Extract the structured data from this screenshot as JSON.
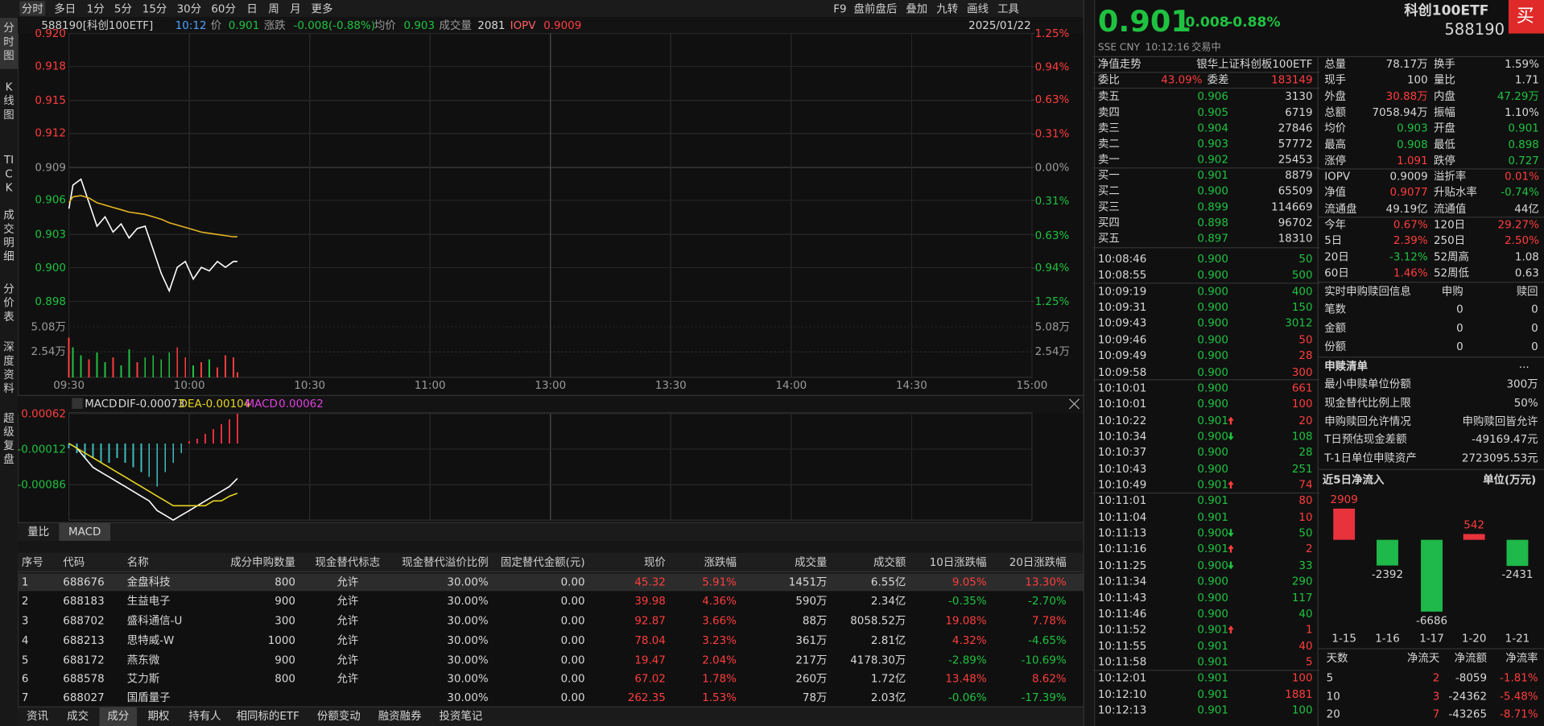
{
  "toolbar": {
    "left": [
      "分时",
      "多日",
      "1分",
      "5分",
      "15分",
      "30分",
      "60分",
      "日",
      "周",
      "月",
      "更多"
    ],
    "right": [
      "F9",
      "盘前盘后",
      "叠加",
      "九转",
      "画线",
      "工具"
    ]
  },
  "sidebar": [
    "分时图",
    "K线图",
    "TICK",
    "成交明细",
    "分价表",
    "深度资料",
    "超级复盘"
  ],
  "quote_bar": {
    "symbol": "588190[科创100ETF]",
    "time": "10:12",
    "price_label": "价",
    "price": "0.901",
    "change_label": "涨跌",
    "change": "-0.008(-0.88%)",
    "avg_label": "均价",
    "avg": "0.903",
    "vol_label": "成交量",
    "vol": "2081",
    "iopv_label": "IOPV",
    "iopv": "0.9009",
    "date": "2025/01/22"
  },
  "chart_data": [
    {
      "type": "line",
      "x": [
        0,
        1,
        3,
        5,
        7,
        9,
        11,
        13,
        15,
        17,
        19,
        21,
        23,
        25,
        27,
        29,
        31,
        33,
        35,
        37,
        39,
        41,
        42
      ],
      "xlim": [
        0,
        240
      ],
      "xticks": [
        {
          "value": 0,
          "label": "09:30"
        },
        {
          "value": 30,
          "label": "10:00"
        },
        {
          "value": 60,
          "label": "10:30"
        },
        {
          "value": 90,
          "label": "11:00"
        },
        {
          "value": 120,
          "label": "13:00"
        },
        {
          "value": 150,
          "label": "13:30"
        },
        {
          "value": 180,
          "label": "14:00"
        },
        {
          "value": 210,
          "label": "14:30"
        },
        {
          "value": 240,
          "label": "15:00"
        }
      ],
      "series": [
        {
          "color": "#ffffff",
          "values": [
            0.9055,
            0.9075,
            0.908,
            0.906,
            0.904,
            0.9048,
            0.9035,
            0.9042,
            0.903,
            0.9038,
            0.904,
            0.902,
            0.9,
            0.8985,
            0.9005,
            0.901,
            0.8995,
            0.9005,
            0.9002,
            0.901,
            0.9005,
            0.901,
            0.901
          ]
        },
        {
          "color": "#e6b422",
          "values": [
            0.906,
            0.9065,
            0.9066,
            0.9064,
            0.906,
            0.9058,
            0.9056,
            0.9054,
            0.9052,
            0.9051,
            0.905,
            0.9048,
            0.9046,
            0.9043,
            0.9041,
            0.9039,
            0.9037,
            0.9035,
            0.9034,
            0.9033,
            0.9032,
            0.9031,
            0.9031
          ]
        }
      ],
      "ylim": [
        0.8976,
        0.9204
      ],
      "yticks": [
        {
          "value": 0.9204,
          "label": "0.920"
        },
        {
          "value": 0.9176,
          "label": "0.918"
        },
        {
          "value": 0.9147,
          "label": "0.915"
        },
        {
          "value": 0.9119,
          "label": "0.912"
        },
        {
          "value": 0.909,
          "label": "0.909"
        },
        {
          "value": 0.9062,
          "label": "0.906"
        },
        {
          "value": 0.9033,
          "label": "0.903"
        },
        {
          "value": 0.90048,
          "label": "0.900"
        },
        {
          "value": 0.8976,
          "label": "0.898"
        }
      ],
      "y2lim": [
        -1.25,
        1.25
      ],
      "y2ticks": [
        {
          "value": 1.25,
          "label": "1.25%"
        },
        {
          "value": 0.94,
          "label": "0.94%"
        },
        {
          "value": 0.63,
          "label": "0.63%"
        },
        {
          "value": 0.31,
          "label": "0.31%"
        },
        {
          "value": 0,
          "label": "0.00%"
        },
        {
          "value": -0.31,
          "label": "0.31%"
        },
        {
          "value": -0.63,
          "label": "0.63%"
        },
        {
          "value": -0.94,
          "label": "0.94%"
        },
        {
          "value": -1.25,
          "label": "1.25%"
        }
      ],
      "grid": true,
      "volume": {
        "values": [
          40000,
          30000,
          22000,
          18000,
          25000,
          15000,
          20000,
          12000,
          28000,
          15000,
          20000,
          22000,
          18000,
          25000,
          30000,
          20000,
          12000,
          15000,
          18000,
          10000,
          22000,
          20000,
          5000
        ],
        "colors": [
          "#ff3d3d",
          "#1fc240",
          "#1fc240",
          "#ff3d3d",
          "#1fc240",
          "#1fc240",
          "#ff3d3d",
          "#1fc240",
          "#1fc240",
          "#ff3d3d",
          "#1fc240",
          "#1fc240",
          "#1fc240",
          "#1fc240",
          "#ff3d3d",
          "#ff3d3d",
          "#1fc240",
          "#ff3d3d",
          "#1fc240",
          "#ff3d3d",
          "#ff3d3d",
          "#ff3d3d",
          "#ff3d3d"
        ],
        "ylim": [
          0,
          76200
        ],
        "yticks": [
          {
            "value": 50800,
            "label": "5.08万"
          },
          {
            "value": 25400,
            "label": "2.54万"
          }
        ]
      }
    },
    {
      "type": "macd",
      "title": "MACD",
      "dif_label": "DIF",
      "dif": "-0.00073",
      "dea_label": "DEA",
      "dea": "-0.00104",
      "macd_label": "MACD",
      "macd": "0.00062",
      "x": [
        0,
        2,
        4,
        6,
        8,
        10,
        12,
        14,
        16,
        18,
        20,
        22,
        24,
        26,
        28,
        30,
        32,
        34,
        36,
        38,
        40,
        42
      ],
      "hist": [
        -0.0001,
        -0.0002,
        -0.0003,
        -0.0003,
        -0.0004,
        -0.0004,
        -0.0003,
        -0.0004,
        -0.0005,
        -0.0006,
        -0.0007,
        -0.0009,
        -0.0006,
        -0.0004,
        -0.0002,
        5e-05,
        0.0001,
        0.0002,
        0.0003,
        0.0004,
        0.0005,
        0.00062
      ],
      "up_color": "#e0303a",
      "down_color": "#3fbcc0",
      "series": [
        {
          "color": "#ffffff",
          "values": [
            0,
            -0.0001,
            -0.0003,
            -0.0005,
            -0.0006,
            -0.0007,
            -0.0008,
            -0.0009,
            -0.001,
            -0.0011,
            -0.0012,
            -0.0014,
            -0.0015,
            -0.0016,
            -0.0015,
            -0.0014,
            -0.0013,
            -0.0012,
            -0.0011,
            -0.001,
            -0.0009,
            -0.00073
          ]
        },
        {
          "color": "#e6d422",
          "values": [
            0,
            -0.0001,
            -0.0002,
            -0.0003,
            -0.0004,
            -0.0005,
            -0.0006,
            -0.0007,
            -0.0008,
            -0.0009,
            -0.001,
            -0.0011,
            -0.0012,
            -0.0013,
            -0.0013,
            -0.0013,
            -0.0013,
            -0.0013,
            -0.0012,
            -0.0012,
            -0.0011,
            -0.00104
          ]
        }
      ],
      "ylim": [
        -0.0016,
        0.00062
      ],
      "yticks": [
        0.00062,
        -0.00012,
        -0.00086
      ]
    },
    {
      "type": "bar",
      "title": "近5日净流入",
      "unit": "单位(万元)",
      "categories": [
        "1-15",
        "1-16",
        "1-17",
        "1-20",
        "1-21"
      ],
      "values": [
        2909,
        -2392,
        -6686,
        542,
        -2431
      ],
      "ylim": [
        -7060,
        3950
      ],
      "pos_color": "#e8323c",
      "neg_color": "#1fb84a"
    }
  ],
  "chart_tabs": [
    "量比",
    "MACD"
  ],
  "table": {
    "header": [
      "序号",
      "代码",
      "名称",
      "成分申购数量",
      "现金替代标志",
      "现金替代溢价比例",
      "固定替代金额(元)",
      "现价",
      "涨跌幅",
      "成交量",
      "成交额",
      "10日涨跌幅",
      "20日涨跌幅"
    ],
    "rows": [
      [
        "1",
        "688676",
        "金盘科技",
        "800",
        "允许",
        "30.00%",
        "0.00",
        "45.32",
        "5.91%",
        "1451万",
        "6.55亿",
        "9.05%",
        "13.30%"
      ],
      [
        "2",
        "688183",
        "生益电子",
        "900",
        "允许",
        "30.00%",
        "0.00",
        "39.98",
        "4.36%",
        "590万",
        "2.34亿",
        "-0.35%",
        "-2.70%"
      ],
      [
        "3",
        "688702",
        "盛科通信-U",
        "300",
        "允许",
        "30.00%",
        "0.00",
        "92.87",
        "3.66%",
        "88万",
        "8058.52万",
        "19.08%",
        "7.78%"
      ],
      [
        "4",
        "688213",
        "思特威-W",
        "1000",
        "允许",
        "30.00%",
        "0.00",
        "78.04",
        "3.23%",
        "361万",
        "2.81亿",
        "4.32%",
        "-4.65%"
      ],
      [
        "5",
        "688172",
        "燕东微",
        "900",
        "允许",
        "30.00%",
        "0.00",
        "19.47",
        "2.04%",
        "217万",
        "4178.30万",
        "-2.89%",
        "-10.69%"
      ],
      [
        "6",
        "688578",
        "艾力斯",
        "800",
        "允许",
        "30.00%",
        "0.00",
        "67.02",
        "1.78%",
        "260万",
        "1.72亿",
        "13.48%",
        "8.62%"
      ],
      [
        "7",
        "688027",
        "国盾量子",
        null,
        null,
        "30.00%",
        "0.00",
        "262.35",
        "1.53%",
        "78万",
        "2.03亿",
        "-0.06%",
        "-17.39%"
      ]
    ]
  },
  "bottom_tabs": [
    "资讯",
    "成交",
    "成分",
    "期权",
    "持有人",
    "相同标的ETF",
    "份额变动",
    "融资融券",
    "投资笔记"
  ],
  "header": {
    "price": "0.901",
    "change": "-0.008",
    "pct": "-0.88%",
    "name": "科创100ETF",
    "code": "588190",
    "buy": "买",
    "exchange": "SSE",
    "currency": "CNY",
    "time": "10:12:16",
    "status": "交易中"
  },
  "order_book": {
    "tabs": [
      "净值走势",
      "银华上证科创板100ETF"
    ],
    "ratio": [
      "委比",
      "43.09%",
      "委差",
      "183149"
    ],
    "asks": [
      [
        "卖五",
        "0.906",
        "3130"
      ],
      [
        "卖四",
        "0.905",
        "6719"
      ],
      [
        "卖三",
        "0.904",
        "27846"
      ],
      [
        "卖二",
        "0.903",
        "57772"
      ],
      [
        "卖一",
        "0.902",
        "25453"
      ]
    ],
    "bids": [
      [
        "买一",
        "0.901",
        "8879"
      ],
      [
        "买二",
        "0.900",
        "65509"
      ],
      [
        "买三",
        "0.899",
        "114669"
      ],
      [
        "买四",
        "0.898",
        "96702"
      ],
      [
        "买五",
        "0.897",
        "18310"
      ]
    ]
  },
  "trades": [
    [
      "10:08:46",
      "0.900",
      "50",
      "g",
      null
    ],
    [
      "10:08:55",
      "0.900",
      "500",
      "g",
      null
    ],
    [
      "10:09:19",
      "0.900",
      "400",
      "g",
      null
    ],
    [
      "10:09:31",
      "0.900",
      "150",
      "g",
      null
    ],
    [
      "10:09:43",
      "0.900",
      "3012",
      "g",
      null
    ],
    [
      "10:09:46",
      "0.900",
      "50",
      "r",
      null
    ],
    [
      "10:09:49",
      "0.900",
      "28",
      "r",
      null
    ],
    [
      "10:09:58",
      "0.900",
      "300",
      "r",
      null
    ],
    [
      "10:10:01",
      "0.900",
      "661",
      "r",
      null
    ],
    [
      "10:10:01",
      "0.900",
      "100",
      "r",
      null
    ],
    [
      "10:10:22",
      "0.901",
      "20",
      "r",
      "up"
    ],
    [
      "10:10:34",
      "0.900",
      "108",
      "g",
      "down"
    ],
    [
      "10:10:37",
      "0.900",
      "28",
      "g",
      null
    ],
    [
      "10:10:43",
      "0.900",
      "251",
      "g",
      null
    ],
    [
      "10:10:49",
      "0.901",
      "74",
      "r",
      "up"
    ],
    [
      "10:11:01",
      "0.901",
      "80",
      "r",
      null
    ],
    [
      "10:11:04",
      "0.901",
      "10",
      "r",
      null
    ],
    [
      "10:11:13",
      "0.900",
      "50",
      "g",
      "down"
    ],
    [
      "10:11:16",
      "0.901",
      "2",
      "r",
      "up"
    ],
    [
      "10:11:25",
      "0.900",
      "33",
      "g",
      "down"
    ],
    [
      "10:11:34",
      "0.900",
      "290",
      "g",
      null
    ],
    [
      "10:11:43",
      "0.900",
      "117",
      "g",
      null
    ],
    [
      "10:11:46",
      "0.900",
      "40",
      "g",
      null
    ],
    [
      "10:11:52",
      "0.901",
      "1",
      "r",
      "up"
    ],
    [
      "10:11:55",
      "0.901",
      "40",
      "r",
      null
    ],
    [
      "10:11:58",
      "0.901",
      "5",
      "r",
      null
    ],
    [
      "10:12:01",
      "0.901",
      "100",
      "r",
      null
    ],
    [
      "10:12:10",
      "0.901",
      "1881",
      "r",
      null
    ],
    [
      "10:12:13",
      "0.901",
      "100",
      "g",
      null
    ]
  ],
  "stats": [
    [
      "总量",
      "78.17万",
      "w",
      "换手",
      "1.59%",
      "w"
    ],
    [
      "现手",
      "100",
      "w",
      "量比",
      "1.71",
      "w"
    ],
    [
      "外盘",
      "30.88万",
      "r",
      "内盘",
      "47.29万",
      "g"
    ],
    [
      "总额",
      "7058.94万",
      "w",
      "振幅",
      "1.10%",
      "w"
    ],
    [
      "均价",
      "0.903",
      "g",
      "开盘",
      "0.901",
      "g"
    ],
    [
      "最高",
      "0.908",
      "g",
      "最低",
      "0.898",
      "g"
    ],
    [
      "涨停",
      "1.091",
      "r",
      "跌停",
      "0.727",
      "g"
    ],
    [
      "IOPV",
      "0.9009",
      "w",
      "溢折率",
      "0.01%",
      "r"
    ],
    [
      "净值",
      "0.9077",
      "r",
      "升贴水率",
      "-0.74%",
      "g"
    ],
    [
      "流通盘",
      "49.19亿",
      "w",
      "流通值",
      "44亿",
      "w"
    ],
    [
      "今年",
      "0.67%",
      "r",
      "120日",
      "29.27%",
      "r"
    ],
    [
      "5日",
      "2.39%",
      "r",
      "250日",
      "2.50%",
      "r"
    ],
    [
      "20日",
      "-3.12%",
      "g",
      "52周高",
      "1.08",
      "w"
    ],
    [
      "60日",
      "1.46%",
      "r",
      "52周低",
      "0.63",
      "w"
    ]
  ],
  "realtime": {
    "title": "实时申购赎回信息",
    "cols": [
      "申购",
      "赎回"
    ],
    "rows": [
      [
        "笔数",
        "0",
        "0"
      ],
      [
        "金额",
        "0",
        "0"
      ],
      [
        "份额",
        "0",
        "0"
      ]
    ]
  },
  "redemption_list": {
    "title": "申赎清单",
    "more": "...",
    "rows": [
      [
        "最小申赎单位份额",
        "300万"
      ],
      [
        "现金替代比例上限",
        "50%"
      ],
      [
        "申购赎回允许情况",
        "申购赎回皆允许"
      ],
      [
        "T日预估现金差额",
        "-49169.47元"
      ],
      [
        "T-1日单位申赎资产",
        "2723095.53元"
      ]
    ]
  },
  "inflow_table": {
    "header": [
      "天数",
      "净流天",
      "净流额",
      "净流率"
    ],
    "rows": [
      [
        "5",
        "2",
        "-8059",
        "-1.81%"
      ],
      [
        "10",
        "3",
        "-24362",
        "-5.48%"
      ],
      [
        "20",
        "7",
        "-43265",
        "-8.71%"
      ]
    ]
  }
}
